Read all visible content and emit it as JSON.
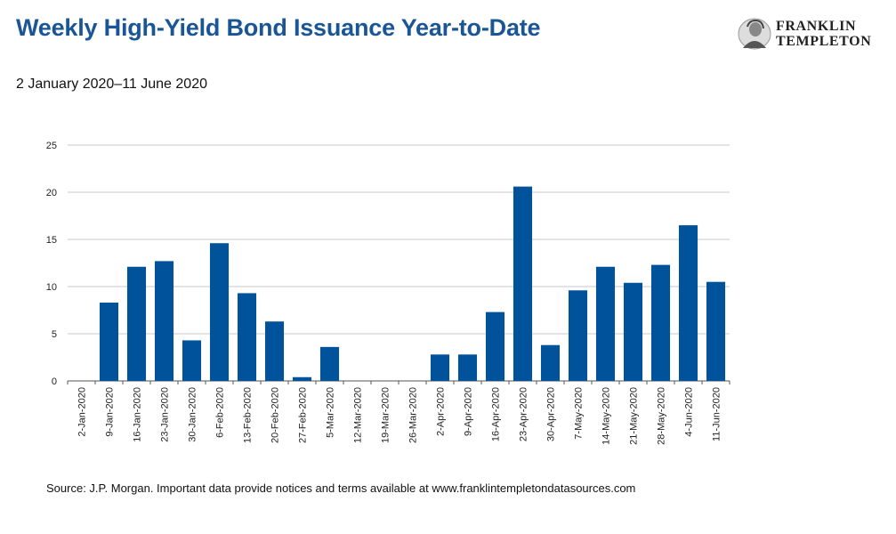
{
  "header": {
    "title": "Weekly High-Yield Bond Issuance Year-to-Date",
    "subtitle": "2 January 2020–11 June 2020"
  },
  "logo": {
    "line1": "FRANKLIN",
    "line2": "TEMPLETON",
    "icon": "benjamin-franklin-portrait-icon"
  },
  "footer": {
    "source": "Source: J.P. Morgan. Important data provide notices and terms available at www.franklintempletondatasources.com"
  },
  "colors": {
    "bar": "#00539b",
    "title": "#1a5596",
    "grid": "#c8c8c8"
  },
  "chart_data": {
    "type": "bar",
    "categories": [
      "2-Jan-2020",
      "9-Jan-2020",
      "16-Jan-2020",
      "23-Jan-2020",
      "30-Jan-2020",
      "6-Feb-2020",
      "13-Feb-2020",
      "20-Feb-2020",
      "27-Feb-2020",
      "5-Mar-2020",
      "12-Mar-2020",
      "19-Mar-2020",
      "26-Mar-2020",
      "2-Apr-2020",
      "9-Apr-2020",
      "16-Apr-2020",
      "23-Apr-2020",
      "30-Apr-2020",
      "7-May-2020",
      "14-May-2020",
      "21-May-2020",
      "28-May-2020",
      "4-Jun-2020",
      "11-Jun-2020"
    ],
    "values": [
      0,
      8.3,
      12.1,
      12.7,
      4.3,
      14.6,
      9.3,
      6.3,
      0.4,
      3.6,
      0,
      0,
      0,
      2.8,
      2.8,
      7.3,
      20.6,
      3.8,
      9.6,
      12.1,
      10.4,
      12.3,
      16.5,
      10.5
    ],
    "yticks": [
      0,
      5,
      10,
      15,
      20,
      25
    ],
    "ylim": [
      0,
      25
    ],
    "grid": true,
    "legend": "none"
  }
}
